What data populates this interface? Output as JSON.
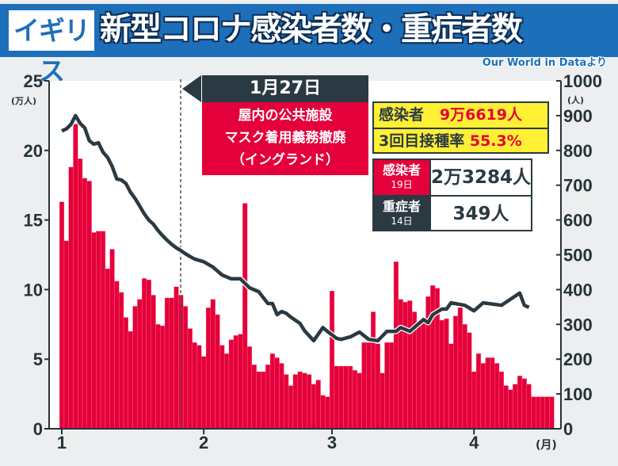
{
  "header": {
    "country": "イギリス",
    "title": "新型コロナ感染者数・重症者数",
    "source": "Our World in Dataより"
  },
  "annotation": {
    "date": "1月27日",
    "line1": "屋内の公共施設",
    "line2": "マスク着用義務撤廃",
    "line3": "（イングランド）"
  },
  "summary": {
    "cases_label": "感染者",
    "cases_value": "9万6619人",
    "booster_label": "3回目接種率",
    "booster_value": "55.3%"
  },
  "latest": [
    {
      "label": "感染者",
      "date": "19日",
      "value": "2万3284人"
    },
    {
      "label": "重症者",
      "date": "14日",
      "value": "349人"
    }
  ],
  "colors": {
    "header": "#1e6fb9",
    "bar": "#e4003a",
    "line": "#2b3a42",
    "highlight": "#fff034"
  },
  "chart_data": {
    "type": "bar+line",
    "title": "新型コロナ感染者数・重症者数",
    "x_unit": "(月)",
    "x_ticks": [
      {
        "day": 1,
        "label": "1"
      },
      {
        "day": 32,
        "label": "2"
      },
      {
        "day": 60,
        "label": "3"
      },
      {
        "day": 91,
        "label": "4"
      }
    ],
    "left_axis": {
      "label": "(万人)",
      "ylim": [
        0,
        25
      ],
      "ticks": [
        "0",
        "5",
        "10",
        "15",
        "20",
        "25"
      ]
    },
    "right_axis": {
      "label": "(人)",
      "ylim": [
        0,
        1000
      ],
      "ticks": [
        "0",
        "100",
        "200",
        "300",
        "400",
        "500",
        "600",
        "700",
        "800",
        "900",
        "1000"
      ]
    },
    "series": [
      {
        "name": "感染者 (万人)",
        "axis": "left",
        "kind": "bar",
        "start_day": 1,
        "values": [
          16.3,
          13.5,
          18.8,
          21.9,
          19.4,
          18.0,
          17.8,
          14.1,
          14.2,
          14.2,
          11.5,
          12.9,
          10.6,
          9.8,
          8.0,
          7.0,
          8.8,
          9.3,
          10.8,
          10.7,
          9.6,
          7.5,
          7.4,
          9.4,
          9.4,
          10.2,
          9.6,
          8.8,
          7.2,
          6.2,
          6.0,
          5.2,
          8.7,
          9.3,
          8.2,
          6.0,
          5.4,
          6.4,
          6.7,
          6.8,
          16.2,
          5.9,
          4.6,
          4.1,
          4.1,
          4.6,
          5.4,
          5.1,
          4.7,
          3.9,
          3.1,
          3.9,
          4.1,
          4.0,
          3.9,
          3.2,
          3.5,
          2.4,
          2.3,
          9.9,
          4.5,
          4.5,
          4.5,
          4.5,
          4.2,
          4.0,
          6.2,
          6.2,
          8.4,
          6.1,
          4.0,
          6.2,
          6.2,
          12.0,
          9.3,
          9.1,
          9.2,
          8.4,
          7.4,
          7.6,
          9.5,
          10.3,
          10.1,
          7.8,
          7.9,
          6.1,
          8.1,
          8.7,
          7.5,
          6.9,
          4.1,
          5.4,
          4.7,
          5.1,
          5.1,
          4.7,
          4.1,
          3.1,
          2.8,
          3.2,
          3.8,
          3.6,
          3.2,
          2.3,
          2.3,
          2.3,
          2.3,
          2.3
        ]
      },
      {
        "name": "重症者 (人)",
        "axis": "right",
        "kind": "line",
        "points": [
          [
            1,
            856
          ],
          [
            2,
            862
          ],
          [
            3,
            875
          ],
          [
            4,
            900
          ],
          [
            5,
            878
          ],
          [
            6,
            865
          ],
          [
            7,
            828
          ],
          [
            8,
            818
          ],
          [
            9,
            822
          ],
          [
            10,
            795
          ],
          [
            11,
            780
          ],
          [
            12,
            754
          ],
          [
            13,
            718
          ],
          [
            14,
            715
          ],
          [
            15,
            705
          ],
          [
            16,
            680
          ],
          [
            17,
            662
          ],
          [
            18,
            640
          ],
          [
            19,
            618
          ],
          [
            20,
            600
          ],
          [
            21,
            588
          ],
          [
            22,
            570
          ],
          [
            23,
            555
          ],
          [
            24,
            542
          ],
          [
            25,
            530
          ],
          [
            26,
            520
          ],
          [
            27,
            512
          ],
          [
            28,
            503
          ],
          [
            29,
            495
          ],
          [
            30,
            488
          ],
          [
            32,
            480
          ],
          [
            34,
            465
          ],
          [
            36,
            442
          ],
          [
            38,
            431
          ],
          [
            40,
            431
          ],
          [
            42,
            405
          ],
          [
            44,
            394
          ],
          [
            46,
            360
          ],
          [
            47,
            360
          ],
          [
            48,
            328
          ],
          [
            49,
            337
          ],
          [
            50,
            332
          ],
          [
            51,
            321
          ],
          [
            53,
            303
          ],
          [
            54,
            282
          ],
          [
            56,
            253
          ],
          [
            58,
            291
          ],
          [
            59,
            280
          ],
          [
            61,
            260
          ],
          [
            62,
            257
          ],
          [
            64,
            264
          ],
          [
            66,
            278
          ],
          [
            68,
            257
          ],
          [
            70,
            253
          ],
          [
            72,
            280
          ],
          [
            74,
            280
          ],
          [
            75,
            291
          ],
          [
            77,
            280
          ],
          [
            80,
            314
          ],
          [
            81,
            305
          ],
          [
            82,
            328
          ],
          [
            84,
            344
          ],
          [
            85,
            344
          ],
          [
            86,
            362
          ],
          [
            89,
            355
          ],
          [
            91,
            339
          ],
          [
            93,
            362
          ],
          [
            97,
            355
          ],
          [
            101,
            390
          ],
          [
            102,
            355
          ],
          [
            103,
            349
          ]
        ]
      }
    ]
  }
}
